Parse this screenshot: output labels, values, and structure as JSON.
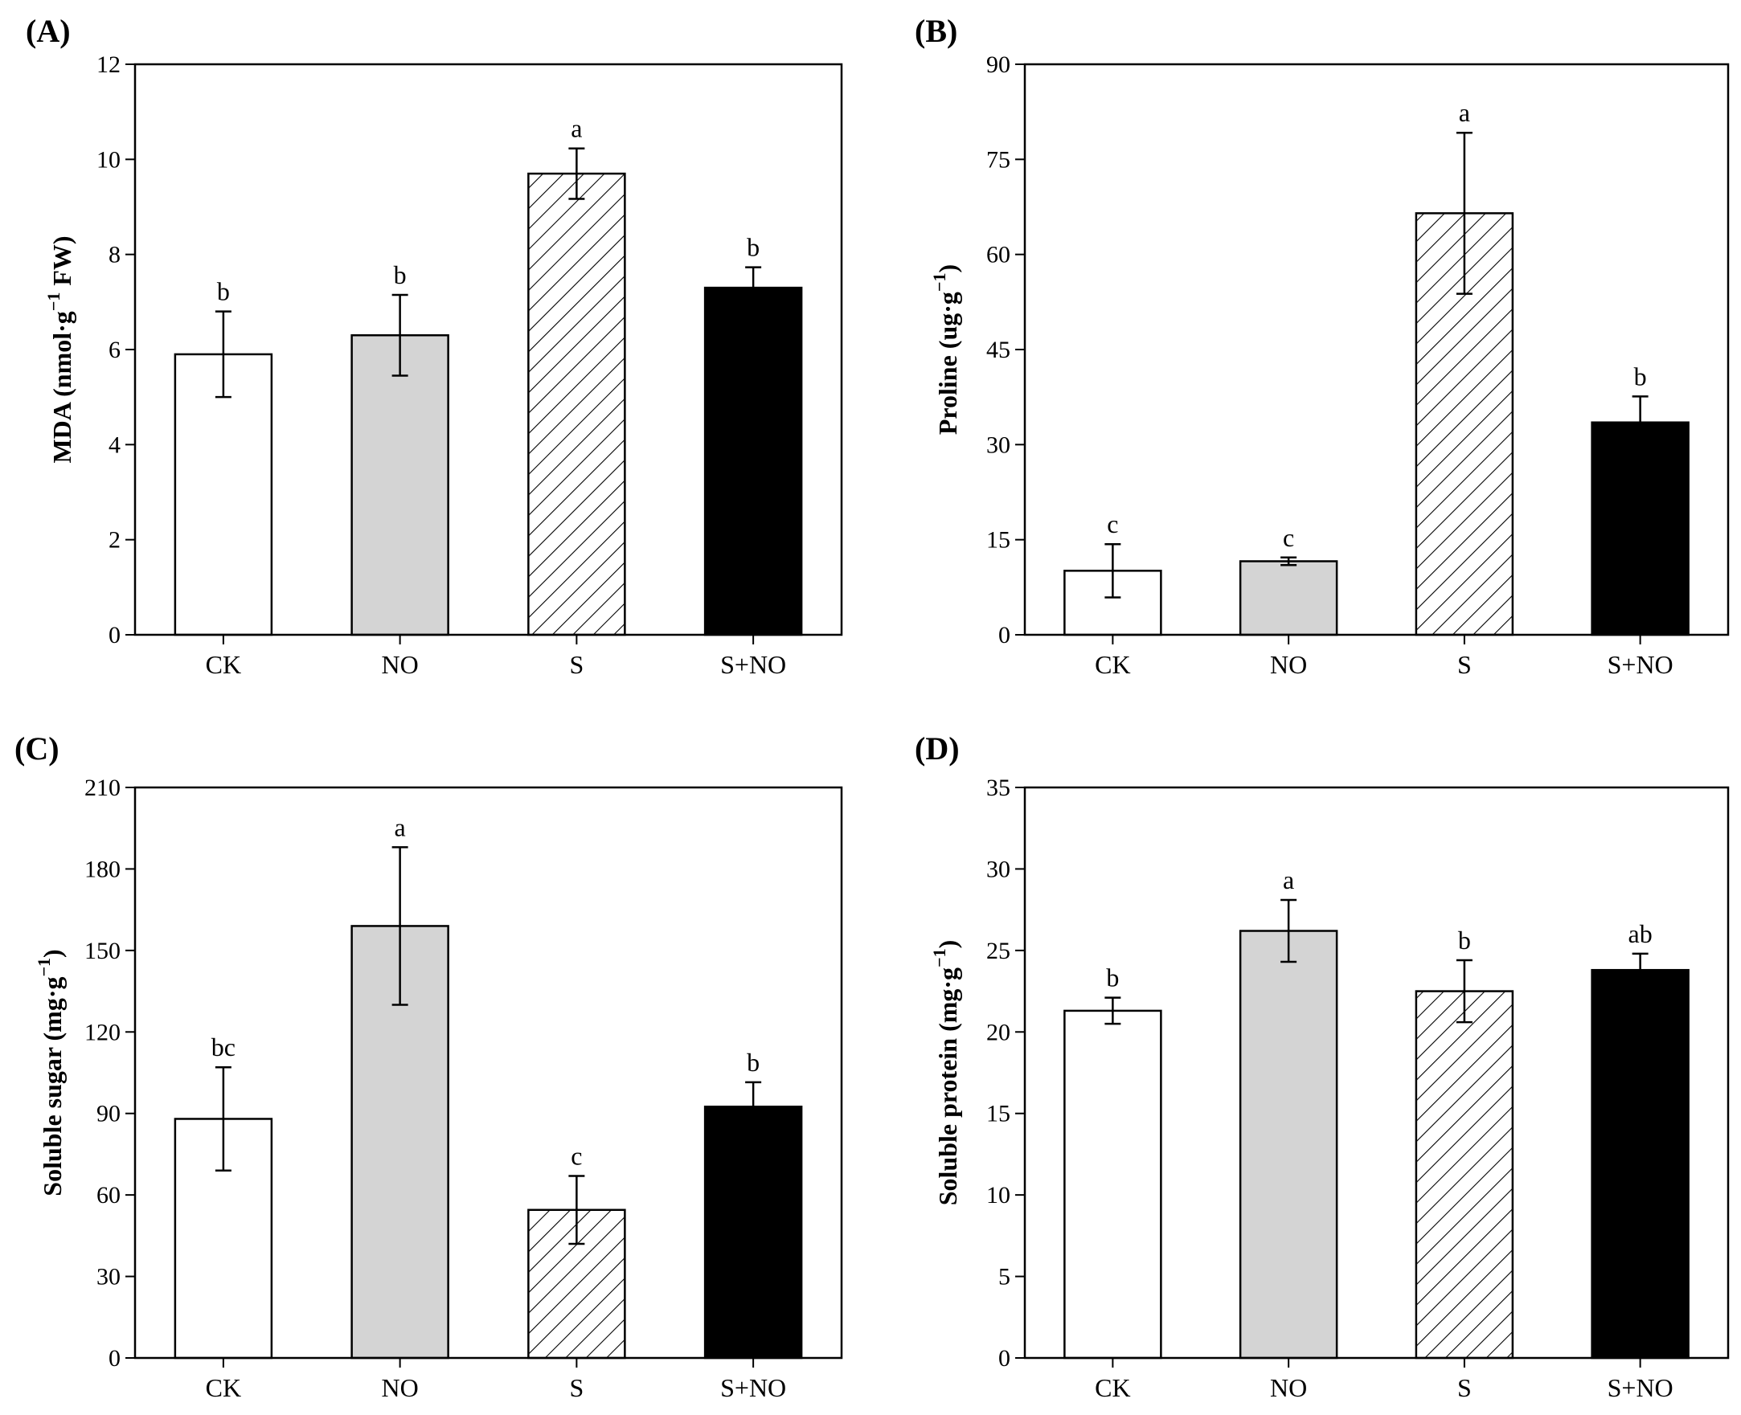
{
  "colors": {
    "ck": "#ffffff",
    "no": "#d4d4d4",
    "s_hatch": "#000000",
    "s_no": "#000000",
    "axis": "#000000"
  },
  "chart_data": [
    {
      "type": "bar",
      "panel_label": "(A)",
      "ylabel_parts": {
        "main": "MDA (nmol·g",
        "sup": "−1",
        "tail": " FW)"
      },
      "categories": [
        "CK",
        "NO",
        "S",
        "S+NO"
      ],
      "values": [
        5.9,
        6.3,
        9.7,
        7.3
      ],
      "errors": [
        0.9,
        0.85,
        0.53,
        0.43
      ],
      "significance": [
        "b",
        "b",
        "a",
        "b"
      ],
      "fills": [
        "white",
        "gray",
        "hatch",
        "black"
      ],
      "ylim": [
        0,
        12
      ],
      "yticks": [
        "0",
        "2",
        "4",
        "6",
        "8",
        "10",
        "12"
      ]
    },
    {
      "type": "bar",
      "panel_label": "(B)",
      "ylabel_parts": {
        "main": "Proline (ug·g",
        "sup": "−1",
        "tail": ")"
      },
      "categories": [
        "CK",
        "NO",
        "S",
        "S+NO"
      ],
      "values": [
        10.1,
        11.6,
        66.5,
        33.5
      ],
      "errors": [
        4.2,
        0.6,
        12.7,
        4.1
      ],
      "significance": [
        "c",
        "c",
        "a",
        "b"
      ],
      "fills": [
        "white",
        "gray",
        "hatch",
        "black"
      ],
      "ylim": [
        0,
        90
      ],
      "yticks": [
        "0",
        "15",
        "30",
        "45",
        "60",
        "75",
        "90"
      ]
    },
    {
      "type": "bar",
      "panel_label": "(C)",
      "ylabel_parts": {
        "main": "Soluble sugar (mg·g",
        "sup": "−1",
        "tail": ")"
      },
      "categories": [
        "CK",
        "NO",
        "S",
        "S+NO"
      ],
      "values": [
        88,
        159,
        54.5,
        92.5
      ],
      "errors": [
        19,
        29,
        12.5,
        9
      ],
      "significance": [
        "bc",
        "a",
        "c",
        "b"
      ],
      "fills": [
        "white",
        "gray",
        "hatch",
        "black"
      ],
      "ylim": [
        0,
        210
      ],
      "yticks": [
        "0",
        "30",
        "60",
        "90",
        "120",
        "150",
        "180",
        "210"
      ]
    },
    {
      "type": "bar",
      "panel_label": "(D)",
      "ylabel_parts": {
        "main": "Soluble protein (mg·g",
        "sup": "−1",
        "tail": ")"
      },
      "categories": [
        "CK",
        "NO",
        "S",
        "S+NO"
      ],
      "values": [
        21.3,
        26.2,
        22.5,
        23.8
      ],
      "errors": [
        0.8,
        1.9,
        1.9,
        1.0
      ],
      "significance": [
        "b",
        "a",
        "b",
        "ab"
      ],
      "fills": [
        "white",
        "gray",
        "hatch",
        "black"
      ],
      "ylim": [
        0,
        35
      ],
      "yticks": [
        "0",
        "5",
        "10",
        "15",
        "20",
        "25",
        "30",
        "35"
      ]
    }
  ]
}
